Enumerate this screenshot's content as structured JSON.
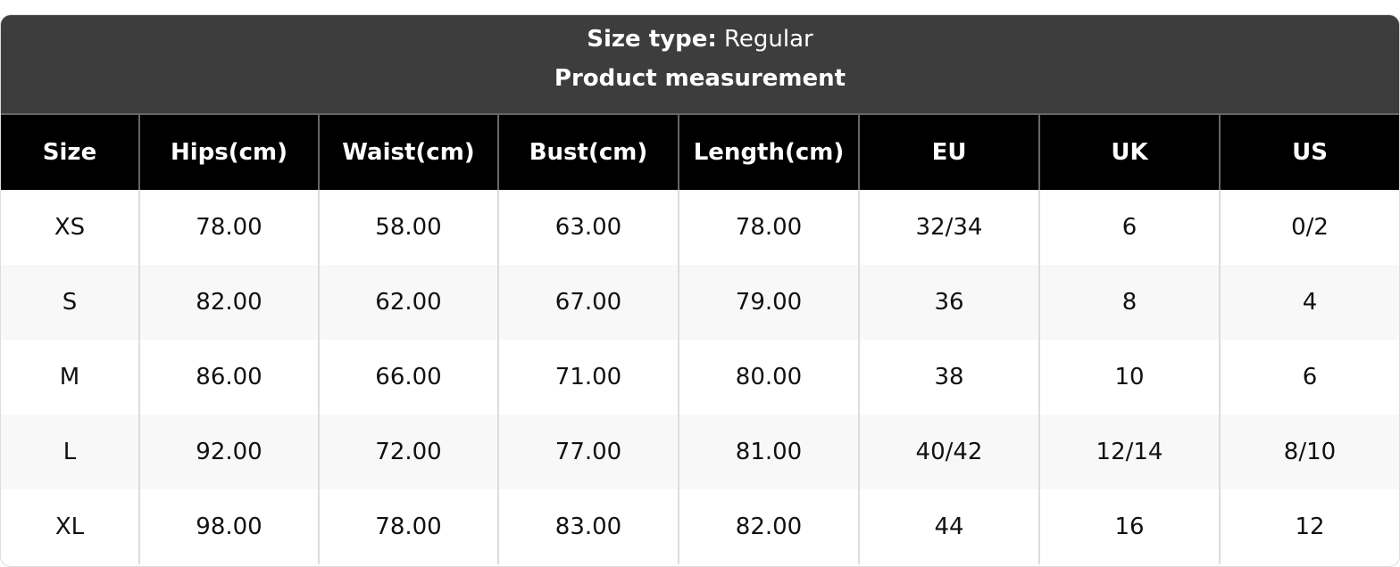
{
  "caption": {
    "size_type_label": "Size type:",
    "size_type_value": "Regular",
    "title": "Product measurement"
  },
  "columns": [
    "Size",
    "Hips(cm)",
    "Waist(cm)",
    "Bust(cm)",
    "Length(cm)",
    "EU",
    "UK",
    "US"
  ],
  "rows": [
    [
      "XS",
      "78.00",
      "58.00",
      "63.00",
      "78.00",
      "32/34",
      "6",
      "0/2"
    ],
    [
      "S",
      "82.00",
      "62.00",
      "67.00",
      "79.00",
      "36",
      "8",
      "4"
    ],
    [
      "M",
      "86.00",
      "66.00",
      "71.00",
      "80.00",
      "38",
      "10",
      "6"
    ],
    [
      "L",
      "92.00",
      "72.00",
      "77.00",
      "81.00",
      "40/42",
      "12/14",
      "8/10"
    ],
    [
      "XL",
      "98.00",
      "78.00",
      "83.00",
      "82.00",
      "44",
      "16",
      "12"
    ]
  ],
  "colors": {
    "caption_bg": "#3d3d3d",
    "header_bg": "#000000",
    "alt_row_bg": "#f8f8f8"
  }
}
